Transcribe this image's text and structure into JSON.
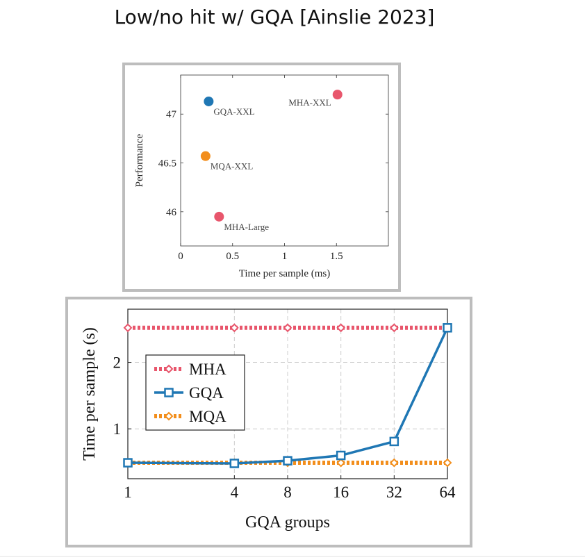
{
  "slide": {
    "title": "Low/no hit w/ GQA [Ainslie 2023]"
  },
  "colors": {
    "mha": "#e8566c",
    "gqa": "#1f77b4",
    "mqa": "#f28e1c",
    "frame": "#bdbdbd"
  },
  "chart_data": [
    {
      "type": "scatter",
      "title": "",
      "xlabel": "Time per sample (ms)",
      "ylabel": "Performance",
      "xlim": [
        0,
        2.0
      ],
      "ylim": [
        45.65,
        47.4
      ],
      "xticks": [
        0,
        0.5,
        1,
        1.5
      ],
      "xtick_labels": [
        "0",
        "0.5",
        "1",
        "1.5"
      ],
      "yticks": [
        46,
        46.5,
        47
      ],
      "ytick_labels": [
        "46",
        "46.5",
        "47"
      ],
      "grid": false,
      "points": [
        {
          "label": "GQA-XXL",
          "x": 0.27,
          "y": 47.13,
          "color": "#1f77b4",
          "label_side": "below-right"
        },
        {
          "label": "MHA-XXL",
          "x": 1.51,
          "y": 47.2,
          "color": "#e8566c",
          "label_side": "left"
        },
        {
          "label": "MQA-XXL",
          "x": 0.24,
          "y": 46.57,
          "color": "#f28e1c",
          "label_side": "below-right"
        },
        {
          "label": "MHA-Large",
          "x": 0.37,
          "y": 45.95,
          "color": "#e8566c",
          "label_side": "below-right"
        }
      ]
    },
    {
      "type": "line",
      "title": "",
      "xlabel": "GQA groups",
      "ylabel": "Time per sample (s)",
      "x_scale": "log2",
      "x": [
        1,
        4,
        8,
        16,
        32,
        64
      ],
      "xtick_labels": [
        "1",
        "4",
        "8",
        "16",
        "32",
        "64"
      ],
      "xlim": [
        1,
        64
      ],
      "ylim": [
        0.25,
        2.8
      ],
      "yticks": [
        1,
        2
      ],
      "ytick_labels": [
        "1",
        "2"
      ],
      "grid": true,
      "legend_position": "left",
      "series": [
        {
          "name": "MHA",
          "color": "#e8566c",
          "style": "dotted",
          "marker": "diamond",
          "values": [
            2.52,
            2.52,
            2.52,
            2.52,
            2.52,
            2.52
          ]
        },
        {
          "name": "GQA",
          "color": "#1f77b4",
          "style": "solid",
          "marker": "square",
          "values": [
            0.49,
            0.48,
            0.52,
            0.6,
            0.81,
            2.52
          ]
        },
        {
          "name": "MQA",
          "color": "#f28e1c",
          "style": "dotted",
          "marker": "diamond",
          "values": [
            0.49,
            0.49,
            0.49,
            0.49,
            0.49,
            0.49
          ]
        }
      ]
    }
  ]
}
